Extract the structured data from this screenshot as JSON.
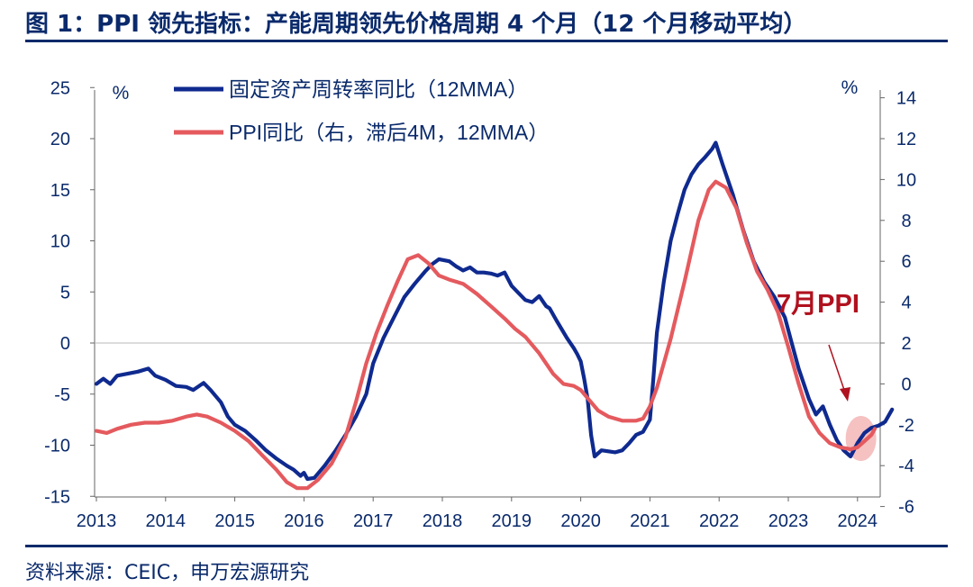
{
  "header": {
    "title": "图 1：PPI 领先指标：产能周期领先价格周期 4 个月（12 个月移动平均）"
  },
  "footer": {
    "source": "资料来源：CEIC，申万宏源研究"
  },
  "colors": {
    "navy": "#0a2a6b",
    "blue_series": "#0f2a8f",
    "red_series": "#e45a5e",
    "highlight": "#f3b6b6",
    "annotation": "#b0111e"
  },
  "chart_data": {
    "type": "line",
    "title": "",
    "left_axis": {
      "unit": "%",
      "range": [
        -15,
        25
      ],
      "ticks": [
        25,
        20,
        15,
        10,
        5,
        0,
        -5,
        -10,
        -15
      ]
    },
    "right_axis": {
      "unit": "%",
      "range": [
        -6,
        14
      ],
      "ticks": [
        14,
        12,
        10,
        8,
        6,
        4,
        2,
        0,
        -2,
        -4,
        -6
      ]
    },
    "x_ticks": [
      "2013",
      "2014",
      "2015",
      "2016",
      "2017",
      "2018",
      "2019",
      "2020",
      "2021",
      "2022",
      "2023",
      "2024"
    ],
    "legend_position": "top-left",
    "annotation": {
      "text": "7月PPI"
    },
    "series": [
      {
        "name": "固定资产周转率同比（12MMA）",
        "axis": "left",
        "color": "#0f2a8f",
        "points": [
          [
            2013.0,
            -4.0
          ],
          [
            2013.1,
            -3.5
          ],
          [
            2013.2,
            -4.0
          ],
          [
            2013.3,
            -3.2
          ],
          [
            2013.45,
            -3.0
          ],
          [
            2013.6,
            -2.8
          ],
          [
            2013.75,
            -2.5
          ],
          [
            2013.85,
            -3.2
          ],
          [
            2014.0,
            -3.6
          ],
          [
            2014.15,
            -4.2
          ],
          [
            2014.3,
            -4.3
          ],
          [
            2014.4,
            -4.6
          ],
          [
            2014.55,
            -3.9
          ],
          [
            2014.65,
            -4.6
          ],
          [
            2014.8,
            -5.8
          ],
          [
            2014.9,
            -7.2
          ],
          [
            2015.0,
            -8.0
          ],
          [
            2015.15,
            -8.6
          ],
          [
            2015.3,
            -9.5
          ],
          [
            2015.45,
            -10.5
          ],
          [
            2015.6,
            -11.3
          ],
          [
            2015.75,
            -12.0
          ],
          [
            2015.85,
            -12.4
          ],
          [
            2015.95,
            -13.0
          ],
          [
            2016.0,
            -12.7
          ],
          [
            2016.05,
            -13.3
          ],
          [
            2016.15,
            -13.2
          ],
          [
            2016.3,
            -12.0
          ],
          [
            2016.45,
            -10.6
          ],
          [
            2016.6,
            -9.0
          ],
          [
            2016.75,
            -7.2
          ],
          [
            2016.9,
            -5.0
          ],
          [
            2017.0,
            -2.0
          ],
          [
            2017.15,
            0.5
          ],
          [
            2017.3,
            2.5
          ],
          [
            2017.45,
            4.5
          ],
          [
            2017.6,
            5.8
          ],
          [
            2017.75,
            7.0
          ],
          [
            2017.85,
            7.7
          ],
          [
            2017.95,
            8.2
          ],
          [
            2018.1,
            8.0
          ],
          [
            2018.2,
            7.5
          ],
          [
            2018.3,
            7.1
          ],
          [
            2018.4,
            7.4
          ],
          [
            2018.5,
            6.9
          ],
          [
            2018.6,
            6.9
          ],
          [
            2018.7,
            6.8
          ],
          [
            2018.8,
            6.6
          ],
          [
            2018.9,
            6.9
          ],
          [
            2019.0,
            5.6
          ],
          [
            2019.1,
            4.9
          ],
          [
            2019.2,
            4.2
          ],
          [
            2019.3,
            4.0
          ],
          [
            2019.4,
            4.6
          ],
          [
            2019.5,
            3.6
          ],
          [
            2019.55,
            3.4
          ],
          [
            2019.65,
            2.2
          ],
          [
            2019.8,
            0.5
          ],
          [
            2019.9,
            -0.5
          ],
          [
            2019.95,
            -1.1
          ],
          [
            2020.0,
            -1.8
          ],
          [
            2020.05,
            -3.5
          ],
          [
            2020.1,
            -5.5
          ],
          [
            2020.15,
            -9.0
          ],
          [
            2020.2,
            -11.1
          ],
          [
            2020.3,
            -10.5
          ],
          [
            2020.4,
            -10.6
          ],
          [
            2020.5,
            -10.7
          ],
          [
            2020.6,
            -10.5
          ],
          [
            2020.7,
            -9.8
          ],
          [
            2020.8,
            -9.0
          ],
          [
            2020.9,
            -8.7
          ],
          [
            2021.0,
            -7.5
          ],
          [
            2021.05,
            -3.5
          ],
          [
            2021.1,
            1.0
          ],
          [
            2021.2,
            6.0
          ],
          [
            2021.3,
            10.0
          ],
          [
            2021.4,
            12.6
          ],
          [
            2021.5,
            15.0
          ],
          [
            2021.6,
            16.5
          ],
          [
            2021.7,
            17.5
          ],
          [
            2021.8,
            18.2
          ],
          [
            2021.9,
            19.0
          ],
          [
            2021.95,
            19.6
          ],
          [
            2022.05,
            17.5
          ],
          [
            2022.2,
            14.5
          ],
          [
            2022.35,
            11.0
          ],
          [
            2022.5,
            8.0
          ],
          [
            2022.65,
            6.0
          ],
          [
            2022.8,
            4.5
          ],
          [
            2022.95,
            2.5
          ],
          [
            2023.05,
            0.0
          ],
          [
            2023.15,
            -2.5
          ],
          [
            2023.3,
            -5.5
          ],
          [
            2023.4,
            -7.0
          ],
          [
            2023.5,
            -6.2
          ],
          [
            2023.6,
            -8.0
          ],
          [
            2023.7,
            -9.5
          ],
          [
            2023.8,
            -10.5
          ],
          [
            2023.9,
            -11.1
          ],
          [
            2024.0,
            -9.8
          ],
          [
            2024.1,
            -8.8
          ],
          [
            2024.2,
            -8.3
          ],
          [
            2024.3,
            -8.1
          ],
          [
            2024.4,
            -7.7
          ],
          [
            2024.5,
            -6.5
          ]
        ]
      },
      {
        "name": "PPI同比（右，滞后4M，12MMA）",
        "axis": "right",
        "color": "#e45a5e",
        "points": [
          [
            2013.0,
            -2.3
          ],
          [
            2013.15,
            -2.4
          ],
          [
            2013.3,
            -2.2
          ],
          [
            2013.5,
            -2.0
          ],
          [
            2013.7,
            -1.9
          ],
          [
            2013.9,
            -1.9
          ],
          [
            2014.1,
            -1.8
          ],
          [
            2014.3,
            -1.6
          ],
          [
            2014.45,
            -1.5
          ],
          [
            2014.6,
            -1.6
          ],
          [
            2014.8,
            -1.9
          ],
          [
            2015.0,
            -2.3
          ],
          [
            2015.2,
            -2.8
          ],
          [
            2015.4,
            -3.5
          ],
          [
            2015.6,
            -4.2
          ],
          [
            2015.75,
            -4.8
          ],
          [
            2015.9,
            -5.1
          ],
          [
            2016.05,
            -5.1
          ],
          [
            2016.2,
            -4.7
          ],
          [
            2016.4,
            -3.9
          ],
          [
            2016.6,
            -2.6
          ],
          [
            2016.75,
            -0.9
          ],
          [
            2016.9,
            1.0
          ],
          [
            2017.05,
            2.5
          ],
          [
            2017.2,
            3.8
          ],
          [
            2017.35,
            5.0
          ],
          [
            2017.5,
            6.1
          ],
          [
            2017.65,
            6.3
          ],
          [
            2017.8,
            5.9
          ],
          [
            2017.95,
            5.3
          ],
          [
            2018.1,
            5.1
          ],
          [
            2018.3,
            4.9
          ],
          [
            2018.5,
            4.4
          ],
          [
            2018.7,
            3.8
          ],
          [
            2018.9,
            3.2
          ],
          [
            2019.05,
            2.7
          ],
          [
            2019.2,
            2.3
          ],
          [
            2019.4,
            1.5
          ],
          [
            2019.6,
            0.5
          ],
          [
            2019.75,
            0.0
          ],
          [
            2019.9,
            -0.1
          ],
          [
            2020.0,
            -0.3
          ],
          [
            2020.1,
            -0.7
          ],
          [
            2020.25,
            -1.3
          ],
          [
            2020.4,
            -1.6
          ],
          [
            2020.6,
            -1.8
          ],
          [
            2020.8,
            -1.8
          ],
          [
            2020.9,
            -1.7
          ],
          [
            2021.0,
            -1.1
          ],
          [
            2021.1,
            -0.2
          ],
          [
            2021.3,
            2.2
          ],
          [
            2021.5,
            5.0
          ],
          [
            2021.7,
            8.0
          ],
          [
            2021.85,
            9.5
          ],
          [
            2021.95,
            9.9
          ],
          [
            2022.1,
            9.6
          ],
          [
            2022.25,
            8.6
          ],
          [
            2022.4,
            6.9
          ],
          [
            2022.55,
            5.5
          ],
          [
            2022.7,
            4.6
          ],
          [
            2022.85,
            3.5
          ],
          [
            2023.0,
            1.8
          ],
          [
            2023.15,
            0.0
          ],
          [
            2023.3,
            -1.6
          ],
          [
            2023.45,
            -2.4
          ],
          [
            2023.6,
            -2.9
          ],
          [
            2023.75,
            -3.1
          ],
          [
            2023.9,
            -3.2
          ],
          [
            2024.0,
            -3.1
          ],
          [
            2024.1,
            -2.8
          ],
          [
            2024.2,
            -2.5
          ],
          [
            2024.25,
            -2.2
          ]
        ]
      }
    ]
  }
}
